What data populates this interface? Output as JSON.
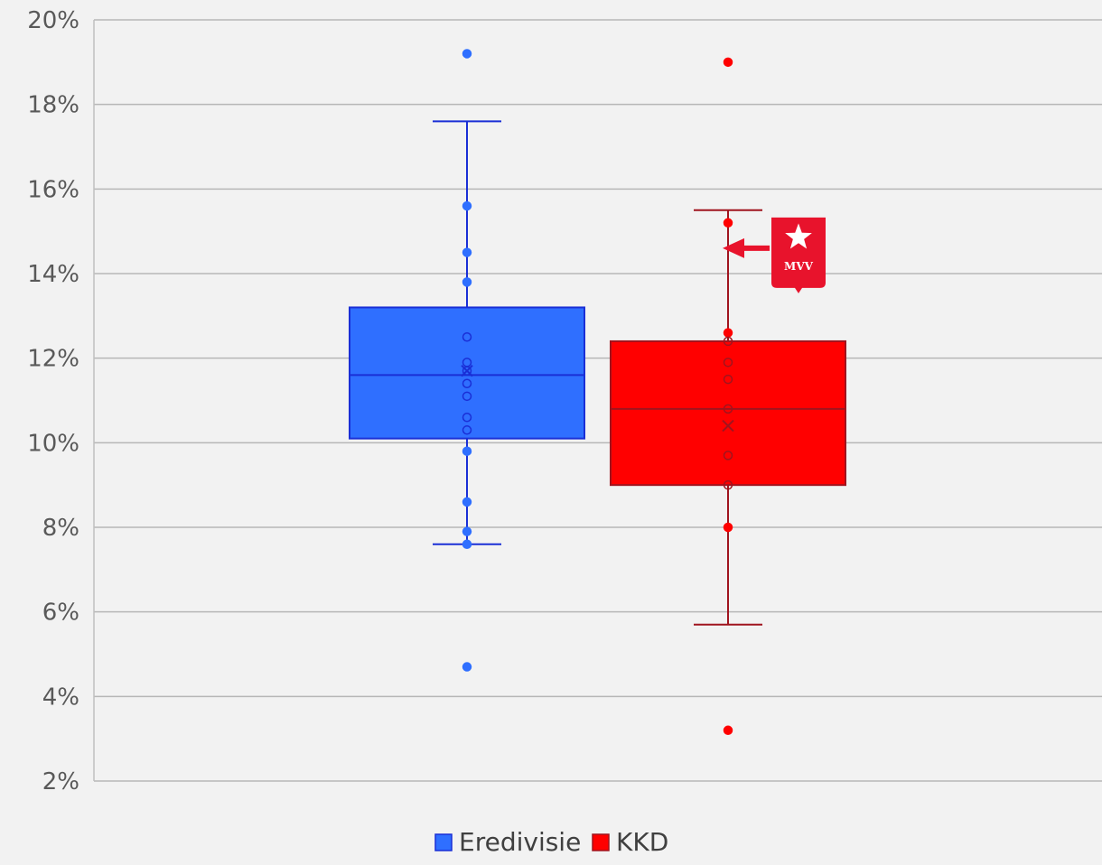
{
  "chart_data": {
    "type": "boxplot",
    "title": "",
    "xlabel": "",
    "ylabel": "",
    "ylim": [
      2,
      20
    ],
    "yticks": [
      2,
      4,
      6,
      8,
      10,
      12,
      14,
      16,
      18,
      20
    ],
    "y_tick_format": "%",
    "grid": true,
    "legend_position": "bottom",
    "series": [
      {
        "name": "Eredivisie",
        "color": "#2f6fff",
        "edge_color": "#1a2fd6",
        "box": {
          "q1": 10.1,
          "median": 11.6,
          "q3": 13.2,
          "whisker_low": 7.6,
          "whisker_high": 17.6,
          "mean": 11.7
        },
        "points": [
          19.2,
          15.6,
          14.5,
          13.8,
          12.5,
          11.9,
          11.7,
          11.4,
          11.1,
          10.6,
          10.3,
          9.8,
          8.6,
          7.9,
          7.6,
          4.7
        ],
        "outliers": [
          19.2,
          4.7
        ]
      },
      {
        "name": "KKD",
        "color": "#ff0000",
        "edge_color": "#a0141e",
        "box": {
          "q1": 9.0,
          "median": 10.8,
          "q3": 12.4,
          "whisker_low": 5.7,
          "whisker_high": 15.5,
          "mean": 10.4
        },
        "points": [
          19.0,
          15.2,
          12.6,
          12.4,
          11.9,
          11.5,
          10.8,
          9.7,
          9.0,
          8.0,
          3.2
        ],
        "outliers": [
          19.0,
          3.2
        ]
      }
    ],
    "annotations": [
      {
        "type": "arrow-with-logo",
        "series": "KKD",
        "y": 14.6,
        "logo_text": "MVV",
        "logo_color": "#e8132c",
        "icon": "star-emblem-icon"
      }
    ]
  }
}
